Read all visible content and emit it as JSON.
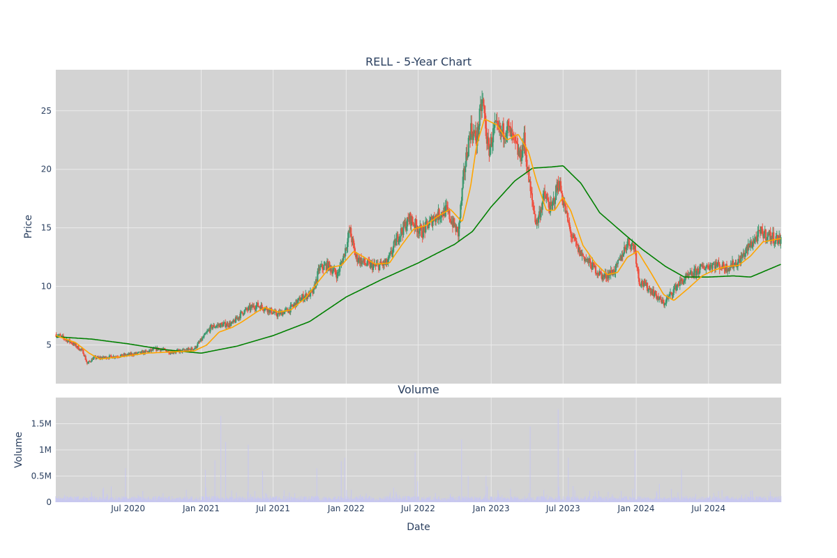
{
  "colors": {
    "plot_bg": "#d3d3d3",
    "grid": "#ebebeb",
    "increasing": "#3d9970",
    "decreasing": "#ef4f3f",
    "ma_short": "#ffa500",
    "ma_long": "#008000",
    "volume": "#c8c8f0"
  },
  "chart_data": [
    {
      "type": "candlestick",
      "title": "RELL - 5-Year Chart",
      "ylabel": "Price",
      "ylim": [
        1.7,
        28.5
      ],
      "yticks": [
        5,
        10,
        15,
        20,
        25
      ],
      "ytick_labels": [
        "5",
        "10",
        "15",
        "20",
        "25"
      ],
      "xlim": [
        "2020-01-01",
        "2024-12-31"
      ],
      "series": [
        {
          "kind": "ohlc_close_path",
          "points": [
            [
              "2020-01-02",
              5.9
            ],
            [
              "2020-01-20",
              5.6
            ],
            [
              "2020-02-10",
              5.2
            ],
            [
              "2020-02-25",
              4.8
            ],
            [
              "2020-03-10",
              4.4
            ],
            [
              "2020-03-20",
              3.4
            ],
            [
              "2020-04-05",
              3.9
            ],
            [
              "2020-04-25",
              3.9
            ],
            [
              "2020-05-20",
              4.0
            ],
            [
              "2020-06-20",
              4.1
            ],
            [
              "2020-07-10",
              4.2
            ],
            [
              "2020-08-15",
              4.4
            ],
            [
              "2020-09-15",
              4.7
            ],
            [
              "2020-10-15",
              4.4
            ],
            [
              "2020-11-15",
              4.5
            ],
            [
              "2020-12-15",
              4.7
            ],
            [
              "2021-01-10",
              5.8
            ],
            [
              "2021-01-25",
              6.5
            ],
            [
              "2021-02-15",
              6.7
            ],
            [
              "2021-03-20",
              6.8
            ],
            [
              "2021-04-15",
              7.8
            ],
            [
              "2021-05-20",
              8.4
            ],
            [
              "2021-06-15",
              8.1
            ],
            [
              "2021-07-10",
              7.6
            ],
            [
              "2021-08-10",
              8.0
            ],
            [
              "2021-09-10",
              9.0
            ],
            [
              "2021-10-10",
              9.5
            ],
            [
              "2021-10-25",
              11.5
            ],
            [
              "2021-11-15",
              11.8
            ],
            [
              "2021-12-10",
              11.0
            ],
            [
              "2021-12-25",
              12.5
            ],
            [
              "2022-01-10",
              14.8
            ],
            [
              "2022-01-25",
              12.5
            ],
            [
              "2022-02-20",
              11.9
            ],
            [
              "2022-03-15",
              11.7
            ],
            [
              "2022-04-15",
              12.0
            ],
            [
              "2022-05-10",
              14.2
            ],
            [
              "2022-06-10",
              15.8
            ],
            [
              "2022-07-10",
              14.6
            ],
            [
              "2022-08-10",
              15.9
            ],
            [
              "2022-09-10",
              16.5
            ],
            [
              "2022-10-10",
              14.5
            ],
            [
              "2022-10-25",
              19.8
            ],
            [
              "2022-11-10",
              23.5
            ],
            [
              "2022-11-25",
              22.5
            ],
            [
              "2022-12-10",
              26.0
            ],
            [
              "2022-12-25",
              21.5
            ],
            [
              "2023-01-10",
              23.5
            ],
            [
              "2023-01-25",
              23.0
            ],
            [
              "2023-02-10",
              23.6
            ],
            [
              "2023-02-25",
              22.5
            ],
            [
              "2023-03-15",
              21.0
            ],
            [
              "2023-03-25",
              22.5
            ],
            [
              "2023-04-10",
              18.0
            ],
            [
              "2023-04-25",
              15.3
            ],
            [
              "2023-05-15",
              17.8
            ],
            [
              "2023-06-01",
              16.5
            ],
            [
              "2023-06-20",
              19.0
            ],
            [
              "2023-07-10",
              16.0
            ],
            [
              "2023-07-20",
              14.5
            ],
            [
              "2023-08-10",
              13.0
            ],
            [
              "2023-09-10",
              11.8
            ],
            [
              "2023-10-10",
              10.8
            ],
            [
              "2023-11-10",
              11.4
            ],
            [
              "2023-12-10",
              13.8
            ],
            [
              "2023-12-28",
              13.4
            ],
            [
              "2024-01-08",
              10.5
            ],
            [
              "2024-02-10",
              9.6
            ],
            [
              "2024-03-10",
              8.5
            ],
            [
              "2024-03-25",
              9.2
            ],
            [
              "2024-04-15",
              10.2
            ],
            [
              "2024-05-15",
              10.9
            ],
            [
              "2024-06-15",
              11.6
            ],
            [
              "2024-07-15",
              11.9
            ],
            [
              "2024-08-15",
              11.6
            ],
            [
              "2024-09-15",
              12.1
            ],
            [
              "2024-10-15",
              13.6
            ],
            [
              "2024-11-10",
              14.6
            ],
            [
              "2024-12-01",
              14.3
            ],
            [
              "2024-12-31",
              13.9
            ]
          ]
        },
        {
          "kind": "moving_average_short",
          "points": [
            [
              "2020-01-02",
              5.8
            ],
            [
              "2020-02-20",
              5.2
            ],
            [
              "2020-03-25",
              4.3
            ],
            [
              "2020-04-20",
              3.8
            ],
            [
              "2020-06-15",
              4.0
            ],
            [
              "2020-08-15",
              4.3
            ],
            [
              "2020-10-15",
              4.4
            ],
            [
              "2020-12-15",
              4.5
            ],
            [
              "2021-01-15",
              5.0
            ],
            [
              "2021-02-15",
              6.1
            ],
            [
              "2021-03-20",
              6.5
            ],
            [
              "2021-04-15",
              7.0
            ],
            [
              "2021-05-20",
              7.8
            ],
            [
              "2021-06-10",
              8.2
            ],
            [
              "2021-07-15",
              7.8
            ],
            [
              "2021-08-15",
              8.0
            ],
            [
              "2021-09-20",
              9.0
            ],
            [
              "2021-10-25",
              10.5
            ],
            [
              "2021-11-20",
              11.6
            ],
            [
              "2021-12-20",
              11.8
            ],
            [
              "2022-01-20",
              13.0
            ],
            [
              "2022-02-15",
              12.5
            ],
            [
              "2022-03-15",
              11.9
            ],
            [
              "2022-04-20",
              12.0
            ],
            [
              "2022-05-20",
              13.5
            ],
            [
              "2022-06-20",
              14.9
            ],
            [
              "2022-07-20",
              15.2
            ],
            [
              "2022-08-20",
              16.0
            ],
            [
              "2022-09-20",
              16.6
            ],
            [
              "2022-10-20",
              15.5
            ],
            [
              "2022-11-10",
              18.5
            ],
            [
              "2022-11-25",
              22.0
            ],
            [
              "2022-12-15",
              24.3
            ],
            [
              "2023-01-15",
              23.8
            ],
            [
              "2023-02-10",
              22.5
            ],
            [
              "2023-03-10",
              23.0
            ],
            [
              "2023-04-05",
              21.5
            ],
            [
              "2023-04-25",
              19.0
            ],
            [
              "2023-05-20",
              16.5
            ],
            [
              "2023-06-10",
              16.5
            ],
            [
              "2023-06-30",
              17.6
            ],
            [
              "2023-07-20",
              16.5
            ],
            [
              "2023-08-20",
              13.5
            ],
            [
              "2023-09-20",
              12.0
            ],
            [
              "2023-10-20",
              11.0
            ],
            [
              "2023-11-15",
              11.2
            ],
            [
              "2023-12-10",
              12.5
            ],
            [
              "2024-01-05",
              13.0
            ],
            [
              "2024-02-10",
              11.0
            ],
            [
              "2024-03-10",
              9.3
            ],
            [
              "2024-04-05",
              8.8
            ],
            [
              "2024-05-10",
              9.8
            ],
            [
              "2024-06-15",
              10.9
            ],
            [
              "2024-07-15",
              11.4
            ],
            [
              "2024-08-15",
              11.7
            ],
            [
              "2024-09-15",
              11.8
            ],
            [
              "2024-10-15",
              12.6
            ],
            [
              "2024-11-15",
              13.8
            ],
            [
              "2024-12-31",
              14.1
            ]
          ]
        },
        {
          "kind": "moving_average_long",
          "points": [
            [
              "2020-01-02",
              5.7
            ],
            [
              "2020-04-01",
              5.5
            ],
            [
              "2020-07-01",
              5.1
            ],
            [
              "2020-10-01",
              4.6
            ],
            [
              "2021-01-01",
              4.3
            ],
            [
              "2021-04-01",
              4.9
            ],
            [
              "2021-07-01",
              5.8
            ],
            [
              "2021-10-01",
              7.0
            ],
            [
              "2022-01-01",
              9.1
            ],
            [
              "2022-04-01",
              10.6
            ],
            [
              "2022-07-01",
              12.0
            ],
            [
              "2022-10-01",
              13.6
            ],
            [
              "2022-11-15",
              14.7
            ],
            [
              "2023-01-01",
              16.8
            ],
            [
              "2023-03-01",
              19.0
            ],
            [
              "2023-04-15",
              20.1
            ],
            [
              "2023-06-01",
              20.2
            ],
            [
              "2023-07-01",
              20.3
            ],
            [
              "2023-08-15",
              18.8
            ],
            [
              "2023-10-01",
              16.3
            ],
            [
              "2023-12-01",
              14.5
            ],
            [
              "2024-01-15",
              13.2
            ],
            [
              "2024-03-15",
              11.7
            ],
            [
              "2024-05-01",
              10.8
            ],
            [
              "2024-07-01",
              10.8
            ],
            [
              "2024-09-01",
              10.9
            ],
            [
              "2024-10-15",
              10.8
            ],
            [
              "2024-12-31",
              11.9
            ]
          ]
        }
      ]
    },
    {
      "type": "bar",
      "title": "Volume",
      "xlabel": "Date",
      "ylabel": "Volume",
      "ylim": [
        0,
        2000000
      ],
      "yticks": [
        0,
        500000,
        1000000,
        1500000
      ],
      "ytick_labels": [
        "0",
        "0.5M",
        "1M",
        "1.5M"
      ],
      "xticks": [
        "2020-07-01",
        "2021-01-01",
        "2021-07-01",
        "2022-01-01",
        "2022-07-01",
        "2023-01-01",
        "2023-07-01",
        "2024-01-01",
        "2024-07-01"
      ],
      "xtick_labels": [
        "Jul 2020",
        "Jan 2021",
        "Jul 2021",
        "Jan 2022",
        "Jul 2022",
        "Jan 2023",
        "Jul 2023",
        "Jan 2024",
        "Jul 2024"
      ],
      "spikes": [
        [
          "2020-06-25",
          650000
        ],
        [
          "2021-01-12",
          620000
        ],
        [
          "2021-02-05",
          800000
        ],
        [
          "2021-02-20",
          1650000
        ],
        [
          "2021-03-05",
          1150000
        ],
        [
          "2021-05-01",
          1100000
        ],
        [
          "2021-06-05",
          600000
        ],
        [
          "2021-10-20",
          650000
        ],
        [
          "2021-12-20",
          780000
        ],
        [
          "2021-12-30",
          850000
        ],
        [
          "2022-06-25",
          950000
        ],
        [
          "2022-07-01",
          400000
        ],
        [
          "2022-10-20",
          1200000
        ],
        [
          "2022-11-05",
          500000
        ],
        [
          "2022-12-20",
          500000
        ],
        [
          "2023-04-10",
          1450000
        ],
        [
          "2023-06-20",
          1780000
        ],
        [
          "2023-07-15",
          850000
        ],
        [
          "2023-12-30",
          1000000
        ],
        [
          "2024-03-01",
          350000
        ],
        [
          "2024-04-25",
          620000
        ]
      ]
    }
  ]
}
